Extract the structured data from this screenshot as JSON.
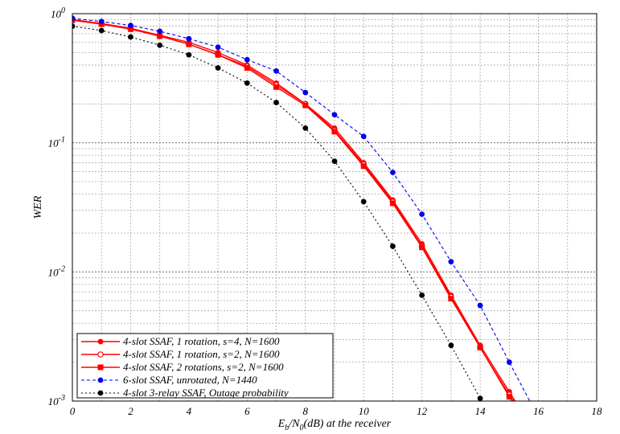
{
  "chart_data": {
    "type": "line",
    "xlabel_parts": {
      "e": "E",
      "b": "b",
      "slash": "/N",
      "zero": "0",
      "rest": "(dB) at the receiver"
    },
    "ylabel": "WER",
    "xlim": [
      0,
      18
    ],
    "ylim": [
      0.001,
      1
    ],
    "y_scale": "log",
    "x_ticks": [
      0,
      2,
      4,
      6,
      8,
      10,
      12,
      14,
      16,
      18
    ],
    "y_ticks": [
      {
        "value": 1,
        "base": "10",
        "exp": "0"
      },
      {
        "value": 0.1,
        "base": "10",
        "exp": "-1"
      },
      {
        "value": 0.01,
        "base": "10",
        "exp": "-2"
      },
      {
        "value": 0.001,
        "base": "10",
        "exp": "-3"
      }
    ],
    "grid": true,
    "legend_position": "bottom-left",
    "series": [
      {
        "name": "4-slot SSAF, 1 rotation,  s=4, N=1600",
        "color": "#ff0000",
        "dash": "solid",
        "marker": "filled-circle",
        "x": [
          0,
          1,
          2,
          3,
          4,
          5,
          6,
          7,
          8,
          9,
          10,
          11,
          12,
          13,
          14,
          15,
          15.2
        ],
        "y": [
          0.9,
          0.84,
          0.77,
          0.68,
          0.6,
          0.5,
          0.4,
          0.29,
          0.2,
          0.13,
          0.07,
          0.036,
          0.0165,
          0.0066,
          0.0027,
          0.00118,
          0.001
        ]
      },
      {
        "name": "4-slot SSAF, 1 rotation,  s=2, N=1600",
        "color": "#ff0000",
        "dash": "solid",
        "marker": "open-circle",
        "x": [
          0,
          1,
          2,
          3,
          4,
          5,
          6,
          7,
          8,
          9,
          10,
          11,
          12,
          13,
          14,
          15,
          15.15
        ],
        "y": [
          0.9,
          0.83,
          0.76,
          0.67,
          0.58,
          0.48,
          0.39,
          0.28,
          0.2,
          0.125,
          0.068,
          0.035,
          0.0158,
          0.0064,
          0.0026,
          0.00112,
          0.001
        ]
      },
      {
        "name": "4-slot SSAF, 2 rotations,  s=2, N=1600",
        "color": "#ff0000",
        "dash": "solid",
        "marker": "filled-square",
        "x": [
          0,
          1,
          2,
          3,
          4,
          5,
          6,
          7,
          8,
          9,
          10,
          11,
          12,
          13,
          14,
          15,
          15.1
        ],
        "y": [
          0.89,
          0.83,
          0.76,
          0.67,
          0.58,
          0.48,
          0.38,
          0.27,
          0.195,
          0.122,
          0.066,
          0.034,
          0.0155,
          0.0062,
          0.0026,
          0.00108,
          0.001
        ]
      },
      {
        "name": "6-slot SSAF, unrotated, N=1440",
        "color": "#0000ee",
        "dash": "dashed",
        "marker": "filled-circle",
        "x": [
          0,
          1,
          2,
          3,
          4,
          5,
          6,
          7,
          8,
          9,
          10,
          11,
          12,
          13,
          14,
          15,
          15.7
        ],
        "y": [
          0.92,
          0.87,
          0.81,
          0.73,
          0.64,
          0.55,
          0.44,
          0.36,
          0.245,
          0.165,
          0.112,
          0.059,
          0.028,
          0.012,
          0.0055,
          0.002,
          0.001
        ]
      },
      {
        "name": "4-slot 3-relay SSAF, Outage probability",
        "color": "#000000",
        "dash": "dotted",
        "marker": "filled-circle",
        "x": [
          0,
          1,
          2,
          3,
          4,
          5,
          6,
          7,
          8,
          9,
          10,
          11,
          12,
          13,
          14
        ],
        "y": [
          0.8,
          0.74,
          0.66,
          0.57,
          0.48,
          0.38,
          0.29,
          0.205,
          0.13,
          0.072,
          0.035,
          0.0158,
          0.0066,
          0.0027,
          0.00105
        ]
      }
    ]
  }
}
